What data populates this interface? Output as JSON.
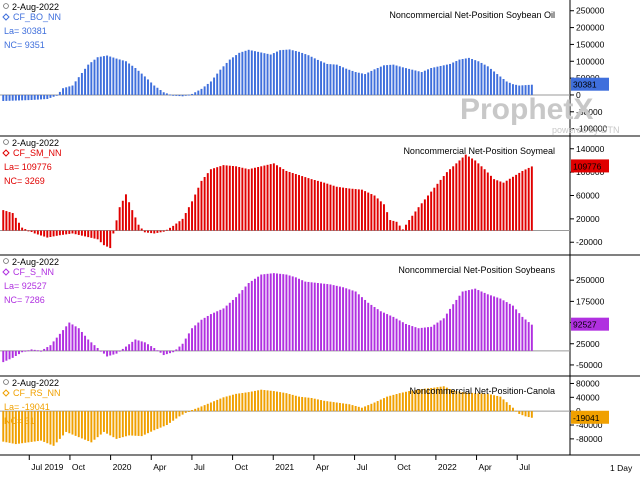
{
  "footer": {
    "interval_label": "1 Day"
  },
  "watermark": {
    "brand": "ProphetX",
    "tagline": "powered by DTN"
  },
  "time_axis": {
    "ticks": [
      {
        "label": "Jul 2019",
        "x": 2019.5
      },
      {
        "label": "Oct",
        "x": 2019.75
      },
      {
        "label": "2020",
        "x": 2020.0
      },
      {
        "label": "Apr",
        "x": 2020.25
      },
      {
        "label": "Jul",
        "x": 2020.5
      },
      {
        "label": "Oct",
        "x": 2020.75
      },
      {
        "label": "2021",
        "x": 2021.0
      },
      {
        "label": "Apr",
        "x": 2021.25
      },
      {
        "label": "Jul",
        "x": 2021.5
      },
      {
        "label": "Oct",
        "x": 2021.75
      },
      {
        "label": "2022",
        "x": 2022.0
      },
      {
        "label": "Apr",
        "x": 2022.25
      },
      {
        "label": "Jul",
        "x": 2022.5
      }
    ],
    "xlim": [
      2019.32,
      2022.8
    ]
  },
  "chart_data": [
    {
      "type": "bar",
      "date": "2-Aug-2022",
      "symbol": "CF_BO_NN",
      "last_label": "La= 30381",
      "nc_label": "NC= 9351",
      "title": "Noncommercial Net-Position  Soybean Oil",
      "last_value_badge": "30381",
      "color": "#3f6fdc",
      "ylim": [
        -110000,
        270000
      ],
      "zero_line": 0,
      "yticks": [
        250000,
        200000,
        150000,
        100000,
        50000,
        0,
        -50000,
        -100000
      ],
      "start": 2019.34,
      "end": 2022.59,
      "anchors": [
        [
          0,
          -18000
        ],
        [
          9,
          -15000
        ],
        [
          14,
          -12000
        ],
        [
          17,
          -2000
        ],
        [
          19,
          20000
        ],
        [
          22,
          28000
        ],
        [
          27,
          90000
        ],
        [
          30,
          112000
        ],
        [
          33,
          117000
        ],
        [
          36,
          108000
        ],
        [
          39,
          100000
        ],
        [
          42,
          80000
        ],
        [
          45,
          55000
        ],
        [
          48,
          28000
        ],
        [
          51,
          8000
        ],
        [
          54,
          -2000
        ],
        [
          57,
          -4000
        ],
        [
          60,
          3000
        ],
        [
          63,
          18000
        ],
        [
          66,
          40000
        ],
        [
          69,
          75000
        ],
        [
          72,
          105000
        ],
        [
          75,
          125000
        ],
        [
          78,
          134000
        ],
        [
          81,
          128000
        ],
        [
          85,
          120000
        ],
        [
          88,
          133000
        ],
        [
          91,
          135000
        ],
        [
          94,
          128000
        ],
        [
          97,
          118000
        ],
        [
          100,
          104000
        ],
        [
          103,
          92000
        ],
        [
          106,
          90000
        ],
        [
          109,
          78000
        ],
        [
          112,
          68000
        ],
        [
          115,
          62000
        ],
        [
          118,
          76000
        ],
        [
          121,
          88000
        ],
        [
          124,
          90000
        ],
        [
          127,
          82000
        ],
        [
          130,
          75000
        ],
        [
          133,
          68000
        ],
        [
          136,
          80000
        ],
        [
          139,
          86000
        ],
        [
          142,
          92000
        ],
        [
          145,
          105000
        ],
        [
          148,
          110000
        ],
        [
          151,
          100000
        ],
        [
          154,
          85000
        ],
        [
          157,
          62000
        ],
        [
          160,
          40000
        ],
        [
          162,
          32000
        ],
        [
          164,
          28000
        ],
        [
          168,
          30381
        ]
      ]
    },
    {
      "type": "bar",
      "date": "2-Aug-2022",
      "symbol": "CF_SM_NN",
      "last_label": "La= 109776",
      "nc_label": "NC= 3269",
      "title": "Noncommercial Net-Position  Soymeal",
      "last_value_badge": "109776",
      "color": "#e00000",
      "ylim": [
        -35000,
        155000
      ],
      "zero_line": 0,
      "yticks": [
        140000,
        100000,
        60000,
        20000,
        -20000
      ],
      "start": 2019.34,
      "end": 2022.59,
      "anchors": [
        [
          0,
          35000
        ],
        [
          3,
          30000
        ],
        [
          6,
          5000
        ],
        [
          10,
          -5000
        ],
        [
          14,
          -12000
        ],
        [
          18,
          -8000
        ],
        [
          22,
          -5000
        ],
        [
          26,
          -10000
        ],
        [
          30,
          -15000
        ],
        [
          32,
          -25000
        ],
        [
          34,
          -30000
        ],
        [
          35,
          -5000
        ],
        [
          37,
          40000
        ],
        [
          39,
          62000
        ],
        [
          41,
          35000
        ],
        [
          43,
          10000
        ],
        [
          45,
          -3000
        ],
        [
          48,
          -5000
        ],
        [
          51,
          -2000
        ],
        [
          54,
          8000
        ],
        [
          57,
          20000
        ],
        [
          60,
          50000
        ],
        [
          63,
          85000
        ],
        [
          66,
          105000
        ],
        [
          70,
          112000
        ],
        [
          74,
          110000
        ],
        [
          78,
          105000
        ],
        [
          82,
          110000
        ],
        [
          86,
          115000
        ],
        [
          90,
          102000
        ],
        [
          94,
          95000
        ],
        [
          98,
          88000
        ],
        [
          102,
          82000
        ],
        [
          106,
          75000
        ],
        [
          110,
          72000
        ],
        [
          114,
          70000
        ],
        [
          118,
          60000
        ],
        [
          121,
          45000
        ],
        [
          123,
          18000
        ],
        [
          125,
          15000
        ],
        [
          127,
          2000
        ],
        [
          129,
          18000
        ],
        [
          132,
          40000
        ],
        [
          135,
          60000
        ],
        [
          138,
          80000
        ],
        [
          141,
          100000
        ],
        [
          144,
          115000
        ],
        [
          147,
          130000
        ],
        [
          150,
          120000
        ],
        [
          153,
          105000
        ],
        [
          156,
          88000
        ],
        [
          159,
          82000
        ],
        [
          162,
          92000
        ],
        [
          165,
          102000
        ],
        [
          168,
          109776
        ]
      ]
    },
    {
      "type": "bar",
      "date": "2-Aug-2022",
      "symbol": "CF_S_NN",
      "last_label": "La= 92527",
      "nc_label": "NC= 7286",
      "title": "Noncommercial Net-Position  Soybeans",
      "last_value_badge": "92527",
      "color": "#b030e0",
      "ylim": [
        -75000,
        325000
      ],
      "zero_line": 0,
      "yticks": [
        250000,
        175000,
        100000,
        25000,
        -50000
      ],
      "start": 2019.34,
      "end": 2022.59,
      "anchors": [
        [
          0,
          -40000
        ],
        [
          3,
          -25000
        ],
        [
          6,
          -5000
        ],
        [
          9,
          5000
        ],
        [
          12,
          0
        ],
        [
          15,
          20000
        ],
        [
          18,
          60000
        ],
        [
          21,
          100000
        ],
        [
          24,
          80000
        ],
        [
          27,
          40000
        ],
        [
          30,
          10000
        ],
        [
          33,
          -20000
        ],
        [
          36,
          -10000
        ],
        [
          39,
          15000
        ],
        [
          42,
          40000
        ],
        [
          45,
          30000
        ],
        [
          48,
          10000
        ],
        [
          51,
          -15000
        ],
        [
          54,
          -5000
        ],
        [
          57,
          25000
        ],
        [
          60,
          80000
        ],
        [
          63,
          110000
        ],
        [
          66,
          130000
        ],
        [
          70,
          150000
        ],
        [
          74,
          190000
        ],
        [
          78,
          240000
        ],
        [
          82,
          270000
        ],
        [
          86,
          275000
        ],
        [
          90,
          270000
        ],
        [
          93,
          260000
        ],
        [
          96,
          245000
        ],
        [
          100,
          240000
        ],
        [
          104,
          235000
        ],
        [
          108,
          225000
        ],
        [
          112,
          210000
        ],
        [
          116,
          170000
        ],
        [
          120,
          140000
        ],
        [
          124,
          120000
        ],
        [
          128,
          95000
        ],
        [
          132,
          80000
        ],
        [
          136,
          85000
        ],
        [
          140,
          115000
        ],
        [
          143,
          165000
        ],
        [
          146,
          210000
        ],
        [
          150,
          220000
        ],
        [
          154,
          200000
        ],
        [
          158,
          185000
        ],
        [
          162,
          160000
        ],
        [
          165,
          120000
        ],
        [
          168,
          92527
        ]
      ]
    },
    {
      "type": "bar",
      "date": "2-Aug-2022",
      "symbol": "CF_RS_NN",
      "last_label": "La= -19041",
      "nc_label": "NC= 31",
      "title": "Noncommercial Net-Position-Canola",
      "last_value_badge": "-19041",
      "color": "#f0a000",
      "ylim": [
        -115000,
        90000
      ],
      "zero_line": 0,
      "yticks": [
        80000,
        40000,
        0,
        -40000,
        -80000
      ],
      "start": 2019.34,
      "end": 2022.59,
      "anchors": [
        [
          0,
          -88000
        ],
        [
          4,
          -95000
        ],
        [
          8,
          -90000
        ],
        [
          12,
          -85000
        ],
        [
          16,
          -100000
        ],
        [
          20,
          -60000
        ],
        [
          24,
          -75000
        ],
        [
          28,
          -90000
        ],
        [
          32,
          -60000
        ],
        [
          36,
          -80000
        ],
        [
          40,
          -70000
        ],
        [
          44,
          -72000
        ],
        [
          48,
          -55000
        ],
        [
          52,
          -40000
        ],
        [
          56,
          -15000
        ],
        [
          59,
          0
        ],
        [
          62,
          10000
        ],
        [
          66,
          25000
        ],
        [
          70,
          40000
        ],
        [
          74,
          50000
        ],
        [
          78,
          55000
        ],
        [
          82,
          62000
        ],
        [
          86,
          58000
        ],
        [
          90,
          52000
        ],
        [
          94,
          42000
        ],
        [
          98,
          38000
        ],
        [
          102,
          30000
        ],
        [
          106,
          25000
        ],
        [
          110,
          20000
        ],
        [
          114,
          10000
        ],
        [
          118,
          25000
        ],
        [
          122,
          42000
        ],
        [
          126,
          52000
        ],
        [
          130,
          60000
        ],
        [
          134,
          65000
        ],
        [
          137,
          68000
        ],
        [
          140,
          72000
        ],
        [
          143,
          60000
        ],
        [
          146,
          55000
        ],
        [
          150,
          52000
        ],
        [
          154,
          50000
        ],
        [
          158,
          42000
        ],
        [
          162,
          10000
        ],
        [
          164,
          -8000
        ],
        [
          166,
          -15000
        ],
        [
          168,
          -19041
        ]
      ]
    }
  ]
}
